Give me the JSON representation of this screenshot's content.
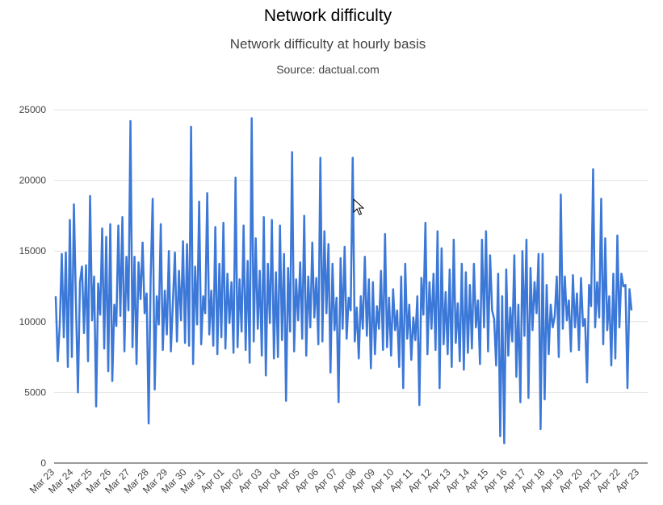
{
  "chart_data": {
    "type": "line",
    "title": "Network difficulty",
    "subtitle": "Network difficulty at hourly basis",
    "source": "Source: dactual.com",
    "xlabel": "",
    "ylabel": "",
    "ylim": [
      0,
      25000
    ],
    "y_ticks": [
      "0",
      "5000",
      "10000",
      "15000",
      "20000",
      "25000"
    ],
    "x_ticks": [
      "Mar 23",
      "Mar 24",
      "Mar 25",
      "Mar 26",
      "Mar 27",
      "Mar 28",
      "Mar 29",
      "Mar 30",
      "Mar 31",
      "Apr 01",
      "Apr 02",
      "Apr 03",
      "Apr 04",
      "Apr 05",
      "Apr 06",
      "Apr 07",
      "Apr 08",
      "Apr 09",
      "Apr 10",
      "Apr 11",
      "Apr 12",
      "Apr 13",
      "Apr 14",
      "Apr 15",
      "Apr 16",
      "Apr 17",
      "Apr 18",
      "Apr 19",
      "Apr 20",
      "Apr 21",
      "Apr 22",
      "Apr 23"
    ],
    "grid": true,
    "line_color": "#3c78d8",
    "series": [
      {
        "name": "",
        "values": [
          11800,
          7200,
          9800,
          14800,
          8900,
          14900,
          6800,
          17200,
          7500,
          18300,
          11400,
          5000,
          12800,
          13900,
          9200,
          14000,
          7200,
          18900,
          10100,
          13200,
          4000,
          12700,
          10500,
          16600,
          8100,
          16000,
          6500,
          16900,
          5800,
          11200,
          9700,
          16800,
          10400,
          17400,
          7900,
          14600,
          10800,
          24200,
          8200,
          14600,
          7000,
          14200,
          11600,
          15600,
          10600,
          12000,
          2800,
          13200,
          18700,
          5200,
          11800,
          9800,
          16900,
          8000,
          12200,
          9100,
          15000,
          7900,
          11400,
          14900,
          8600,
          13600,
          10100,
          15700,
          8500,
          15500,
          8300,
          23800,
          7000,
          13900,
          9800,
          18500,
          8400,
          11800,
          10600,
          19100,
          9100,
          12200,
          8300,
          16700,
          7700,
          14100,
          8900,
          17000,
          8100,
          13400,
          9900,
          12800,
          7800,
          20200,
          8200,
          13000,
          9300,
          16800,
          8000,
          14300,
          7100,
          24400,
          8600,
          15900,
          9500,
          13600,
          7600,
          17400,
          6200,
          14100,
          9900,
          17200,
          7400,
          13500,
          7500,
          16800,
          8700,
          14800,
          4400,
          13800,
          9300,
          22000,
          7900,
          13000,
          10100,
          14200,
          8800,
          17500,
          7600,
          13200,
          9600,
          15600,
          10300,
          13100,
          8400,
          21600,
          8600,
          16400,
          10600,
          15500,
          6400,
          14100,
          9400,
          11700,
          4300,
          14500,
          9500,
          15300,
          8800,
          11700,
          10800,
          21600,
          8600,
          11000,
          7400,
          11800,
          9500,
          14600,
          9000,
          13000,
          6700,
          12800,
          7700,
          11100,
          9500,
          13600,
          8000,
          16200,
          8200,
          11700,
          7600,
          12300,
          9400,
          10800,
          6800,
          13200,
          5300,
          14100,
          8800,
          11200,
          7300,
          10300,
          8700,
          11800,
          4100,
          13100,
          10500,
          17000,
          7700,
          12800,
          9500,
          13400,
          8000,
          16400,
          5300,
          15200,
          8400,
          12100,
          7700,
          13700,
          6800,
          15800,
          8500,
          11300,
          7200,
          14100,
          6600,
          13500,
          7800,
          12600,
          8100,
          14100,
          9600,
          11500,
          7000,
          15800,
          9600,
          16400,
          7900,
          14700,
          10800,
          10200,
          6900,
          13400,
          1900,
          11800,
          1400,
          13700,
          7600,
          11000,
          8600,
          14700,
          6100,
          11200,
          4300,
          15000,
          9000,
          15800,
          4600,
          13800,
          9400,
          12800,
          10600,
          14800,
          2400,
          14800,
          4500,
          12600,
          7700,
          11200,
          9600,
          10400,
          13200,
          7500,
          19000,
          9500,
          13200,
          10100,
          11500,
          7900,
          13300,
          9600,
          12000,
          8000,
          13100,
          9700,
          10200,
          5700,
          12600,
          11100,
          20800,
          9600,
          12800,
          10300,
          18700,
          8400,
          15900,
          9400,
          11800,
          6900,
          13400,
          7400,
          16100,
          9600,
          13400,
          12500,
          12600,
          5300,
          12300,
          10800
        ]
      }
    ]
  }
}
